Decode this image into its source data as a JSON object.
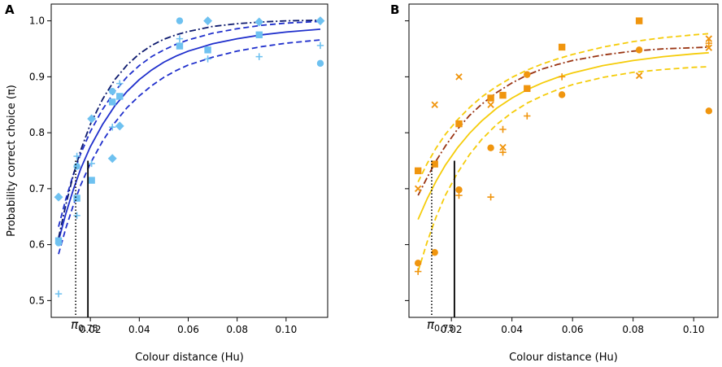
{
  "chart_data": [
    {
      "type": "scatter",
      "panel_label": "A",
      "xlabel": "Colour distance (Hu)",
      "ylabel": "Probability correct choice (π)",
      "xlim": [
        0.004,
        0.117
      ],
      "ylim": [
        0.47,
        1.03
      ],
      "xticks": [
        0.02,
        0.04,
        0.06,
        0.08,
        0.1
      ],
      "xtick_labels": [
        "0.02",
        "0.04",
        "0.06",
        "0.08",
        "0.10"
      ],
      "yticks": [
        0.5,
        0.6,
        0.7,
        0.8,
        0.9,
        1.0
      ],
      "ytick_labels": [
        "0.5",
        "0.6",
        "0.7",
        "0.8",
        "0.9",
        "1.0"
      ],
      "pi75": {
        "label_main": "π",
        "label_sub": "0.75",
        "dotted_x": 0.014,
        "solid_x": 0.019,
        "y": 0.75
      },
      "curves": [
        {
          "name": "fit",
          "style": "solid",
          "color": "#1f2fcc",
          "x": [
            0.007,
            0.01,
            0.013,
            0.016,
            0.02,
            0.025,
            0.03,
            0.035,
            0.04,
            0.045,
            0.05,
            0.055,
            0.06,
            0.07,
            0.08,
            0.09,
            0.1,
            0.114
          ],
          "y": [
            0.607,
            0.656,
            0.698,
            0.735,
            0.775,
            0.815,
            0.848,
            0.874,
            0.895,
            0.912,
            0.926,
            0.937,
            0.946,
            0.959,
            0.968,
            0.975,
            0.98,
            0.985
          ]
        },
        {
          "name": "ci-upper",
          "style": "dashed",
          "color": "#1f2fcc",
          "x": [
            0.007,
            0.01,
            0.013,
            0.016,
            0.02,
            0.025,
            0.03,
            0.035,
            0.04,
            0.045,
            0.05,
            0.055,
            0.06,
            0.07,
            0.08,
            0.09,
            0.1,
            0.114
          ],
          "y": [
            0.632,
            0.682,
            0.725,
            0.762,
            0.802,
            0.842,
            0.874,
            0.9,
            0.92,
            0.936,
            0.948,
            0.958,
            0.966,
            0.978,
            0.986,
            0.992,
            0.996,
            0.999
          ]
        },
        {
          "name": "ci-lower",
          "style": "dashed",
          "color": "#1f2fcc",
          "x": [
            0.007,
            0.01,
            0.013,
            0.016,
            0.02,
            0.025,
            0.03,
            0.035,
            0.04,
            0.045,
            0.05,
            0.055,
            0.06,
            0.07,
            0.08,
            0.09,
            0.1,
            0.114
          ],
          "y": [
            0.583,
            0.63,
            0.67,
            0.706,
            0.745,
            0.785,
            0.818,
            0.845,
            0.866,
            0.884,
            0.899,
            0.911,
            0.921,
            0.935,
            0.946,
            0.954,
            0.96,
            0.966
          ]
        },
        {
          "name": "fit-alt",
          "style": "dashdot",
          "color": "#0d1a6e",
          "x": [
            0.007,
            0.01,
            0.013,
            0.016,
            0.02,
            0.025,
            0.03,
            0.035,
            0.04,
            0.045,
            0.05,
            0.055,
            0.06,
            0.07,
            0.08,
            0.09,
            0.1,
            0.114
          ],
          "y": [
            0.612,
            0.672,
            0.724,
            0.768,
            0.815,
            0.86,
            0.895,
            0.921,
            0.941,
            0.956,
            0.967,
            0.975,
            0.981,
            0.99,
            0.995,
            0.998,
            1.0,
            1.001
          ]
        }
      ],
      "points_color": "#6ec1f0",
      "points": [
        {
          "x": 0.007,
          "y": 0.685,
          "m": "diamond"
        },
        {
          "x": 0.007,
          "y": 0.607,
          "m": "square"
        },
        {
          "x": 0.007,
          "y": 0.603,
          "m": "circle"
        },
        {
          "x": 0.007,
          "y": 0.512,
          "m": "plus"
        },
        {
          "x": 0.0145,
          "y": 0.758,
          "m": "plus"
        },
        {
          "x": 0.0145,
          "y": 0.74,
          "m": "circle"
        },
        {
          "x": 0.0145,
          "y": 0.683,
          "m": "square"
        },
        {
          "x": 0.0145,
          "y": 0.652,
          "m": "plus"
        },
        {
          "x": 0.0205,
          "y": 0.825,
          "m": "diamond"
        },
        {
          "x": 0.0205,
          "y": 0.715,
          "m": "square"
        },
        {
          "x": 0.0205,
          "y": 0.745,
          "m": "plus"
        },
        {
          "x": 0.029,
          "y": 0.874,
          "m": "circle"
        },
        {
          "x": 0.029,
          "y": 0.855,
          "m": "square"
        },
        {
          "x": 0.029,
          "y": 0.81,
          "m": "plus"
        },
        {
          "x": 0.029,
          "y": 0.754,
          "m": "diamond"
        },
        {
          "x": 0.032,
          "y": 0.888,
          "m": "plus"
        },
        {
          "x": 0.032,
          "y": 0.865,
          "m": "square"
        },
        {
          "x": 0.032,
          "y": 0.812,
          "m": "diamond"
        },
        {
          "x": 0.0565,
          "y": 1.0,
          "m": "circle"
        },
        {
          "x": 0.0565,
          "y": 0.968,
          "m": "plus"
        },
        {
          "x": 0.0565,
          "y": 0.955,
          "m": "square"
        },
        {
          "x": 0.068,
          "y": 1.0,
          "m": "diamond"
        },
        {
          "x": 0.068,
          "y": 0.948,
          "m": "square"
        },
        {
          "x": 0.068,
          "y": 0.932,
          "m": "plus"
        },
        {
          "x": 0.089,
          "y": 0.998,
          "m": "diamond"
        },
        {
          "x": 0.089,
          "y": 0.975,
          "m": "square"
        },
        {
          "x": 0.089,
          "y": 0.936,
          "m": "plus"
        },
        {
          "x": 0.114,
          "y": 1.0,
          "m": "diamond"
        },
        {
          "x": 0.114,
          "y": 0.956,
          "m": "plus"
        },
        {
          "x": 0.114,
          "y": 0.924,
          "m": "circle"
        }
      ]
    },
    {
      "type": "scatter",
      "panel_label": "B",
      "xlabel": "Colour distance (Hu)",
      "ylabel": "",
      "xlim": [
        0.006,
        0.108
      ],
      "ylim": [
        0.47,
        1.03
      ],
      "xticks": [
        0.02,
        0.04,
        0.06,
        0.08,
        0.1
      ],
      "xtick_labels": [
        "0.02",
        "0.04",
        "0.06",
        "0.08",
        "0.10"
      ],
      "yticks": [
        0.5,
        0.6,
        0.7,
        0.8,
        0.9,
        1.0
      ],
      "ytick_labels": [],
      "pi75": {
        "label_main": "π",
        "label_sub": "0.75",
        "dotted_x": 0.0135,
        "solid_x": 0.021,
        "y": 0.75
      },
      "curves": [
        {
          "name": "fit",
          "style": "solid",
          "color": "#f5cc0a",
          "x": [
            0.009,
            0.012,
            0.015,
            0.018,
            0.022,
            0.026,
            0.03,
            0.035,
            0.04,
            0.045,
            0.05,
            0.055,
            0.06,
            0.07,
            0.08,
            0.09,
            0.1,
            0.105
          ],
          "y": [
            0.645,
            0.682,
            0.714,
            0.742,
            0.773,
            0.799,
            0.821,
            0.844,
            0.862,
            0.877,
            0.889,
            0.899,
            0.907,
            0.92,
            0.929,
            0.936,
            0.941,
            0.943
          ]
        },
        {
          "name": "ci-upper",
          "style": "dashed",
          "color": "#f5cc0a",
          "x": [
            0.009,
            0.012,
            0.015,
            0.018,
            0.022,
            0.026,
            0.03,
            0.035,
            0.04,
            0.045,
            0.05,
            0.055,
            0.06,
            0.07,
            0.08,
            0.09,
            0.1,
            0.105
          ],
          "y": [
            0.712,
            0.745,
            0.773,
            0.797,
            0.823,
            0.845,
            0.864,
            0.883,
            0.899,
            0.912,
            0.923,
            0.932,
            0.94,
            0.953,
            0.963,
            0.97,
            0.975,
            0.977
          ]
        },
        {
          "name": "ci-lower",
          "style": "dashed",
          "color": "#f5cc0a",
          "x": [
            0.009,
            0.012,
            0.015,
            0.018,
            0.022,
            0.026,
            0.03,
            0.035,
            0.04,
            0.045,
            0.05,
            0.055,
            0.06,
            0.07,
            0.08,
            0.09,
            0.1,
            0.105
          ],
          "y": [
            0.552,
            0.605,
            0.65,
            0.688,
            0.728,
            0.761,
            0.788,
            0.815,
            0.836,
            0.853,
            0.866,
            0.877,
            0.886,
            0.899,
            0.908,
            0.913,
            0.917,
            0.918
          ]
        },
        {
          "name": "fit-alt",
          "style": "dashdot",
          "color": "#9a3412",
          "x": [
            0.009,
            0.012,
            0.015,
            0.018,
            0.022,
            0.026,
            0.03,
            0.035,
            0.04,
            0.045,
            0.05,
            0.055,
            0.06,
            0.07,
            0.08,
            0.09,
            0.1,
            0.105
          ],
          "y": [
            0.688,
            0.72,
            0.75,
            0.776,
            0.806,
            0.831,
            0.851,
            0.872,
            0.889,
            0.903,
            0.914,
            0.922,
            0.929,
            0.939,
            0.946,
            0.95,
            0.952,
            0.953
          ]
        }
      ],
      "points_color": "#f0950e",
      "points": [
        {
          "x": 0.009,
          "y": 0.732,
          "m": "square"
        },
        {
          "x": 0.009,
          "y": 0.7,
          "m": "cross"
        },
        {
          "x": 0.009,
          "y": 0.567,
          "m": "circle"
        },
        {
          "x": 0.009,
          "y": 0.552,
          "m": "plus"
        },
        {
          "x": 0.0145,
          "y": 0.85,
          "m": "cross"
        },
        {
          "x": 0.0145,
          "y": 0.744,
          "m": "square"
        },
        {
          "x": 0.0145,
          "y": 0.586,
          "m": "circle"
        },
        {
          "x": 0.0225,
          "y": 0.9,
          "m": "cross"
        },
        {
          "x": 0.0225,
          "y": 0.816,
          "m": "square"
        },
        {
          "x": 0.0225,
          "y": 0.698,
          "m": "circle"
        },
        {
          "x": 0.0225,
          "y": 0.688,
          "m": "plus"
        },
        {
          "x": 0.033,
          "y": 0.862,
          "m": "square"
        },
        {
          "x": 0.033,
          "y": 0.85,
          "m": "cross"
        },
        {
          "x": 0.033,
          "y": 0.773,
          "m": "circle"
        },
        {
          "x": 0.033,
          "y": 0.685,
          "m": "plus"
        },
        {
          "x": 0.037,
          "y": 0.867,
          "m": "square"
        },
        {
          "x": 0.037,
          "y": 0.806,
          "m": "plus"
        },
        {
          "x": 0.037,
          "y": 0.774,
          "m": "cross"
        },
        {
          "x": 0.037,
          "y": 0.765,
          "m": "plus"
        },
        {
          "x": 0.045,
          "y": 0.904,
          "m": "circle"
        },
        {
          "x": 0.045,
          "y": 0.879,
          "m": "square"
        },
        {
          "x": 0.045,
          "y": 0.83,
          "m": "plus"
        },
        {
          "x": 0.0565,
          "y": 0.953,
          "m": "square"
        },
        {
          "x": 0.0565,
          "y": 0.9,
          "m": "plus"
        },
        {
          "x": 0.0565,
          "y": 0.868,
          "m": "circle"
        },
        {
          "x": 0.082,
          "y": 1.0,
          "m": "square"
        },
        {
          "x": 0.082,
          "y": 0.948,
          "m": "circle"
        },
        {
          "x": 0.082,
          "y": 0.902,
          "m": "cross"
        },
        {
          "x": 0.105,
          "y": 0.968,
          "m": "cross"
        },
        {
          "x": 0.105,
          "y": 0.96,
          "m": "plus"
        },
        {
          "x": 0.105,
          "y": 0.952,
          "m": "cross"
        },
        {
          "x": 0.105,
          "y": 0.839,
          "m": "circle"
        }
      ]
    }
  ]
}
